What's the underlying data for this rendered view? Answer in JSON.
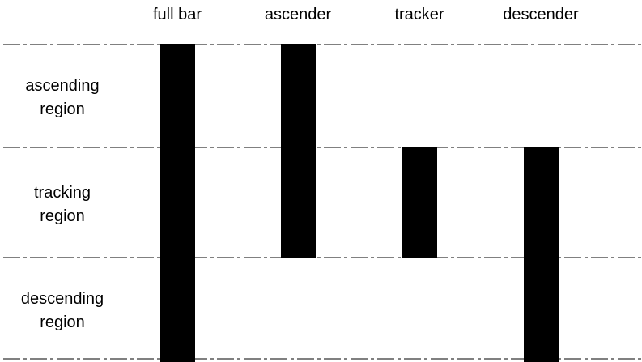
{
  "columns": [
    {
      "label": "full bar",
      "from": "top",
      "to": "bottom"
    },
    {
      "label": "ascender",
      "from": "top",
      "to": "baseline"
    },
    {
      "label": "tracker",
      "from": "midline",
      "to": "baseline"
    },
    {
      "label": "descender",
      "from": "midline",
      "to": "bottom"
    }
  ],
  "regions": [
    {
      "line1": "ascending",
      "line2": "region"
    },
    {
      "line1": "tracking",
      "line2": "region"
    },
    {
      "line1": "descending",
      "line2": "region"
    }
  ],
  "guide_lines": [
    "top",
    "midline",
    "baseline",
    "bottom"
  ],
  "colors": {
    "bar": "#000000",
    "line": "#000000",
    "background": "#ffffff"
  }
}
